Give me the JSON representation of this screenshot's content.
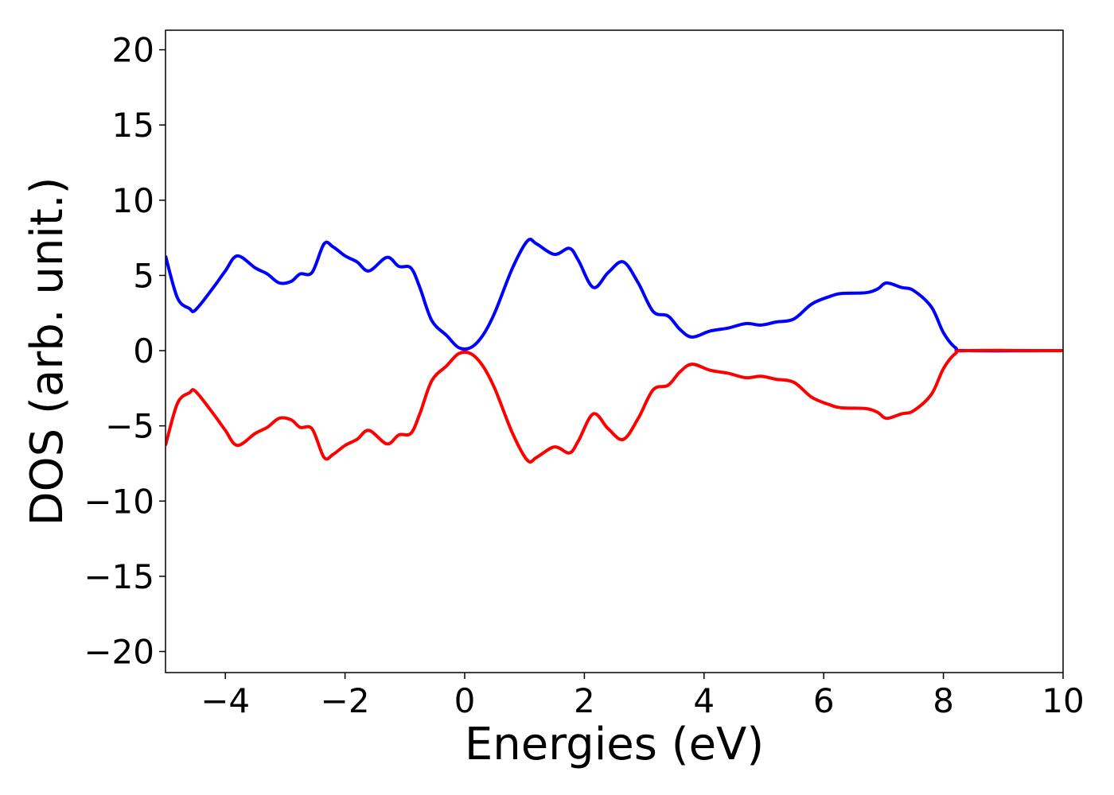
{
  "chart_data": {
    "type": "line",
    "x_label": "Energies (eV)",
    "y_label": "DOS (arb. unit.)",
    "x": [
      -5,
      -4.8,
      -4.6,
      -4.5,
      -4.2,
      -4.0,
      -3.8,
      -3.5,
      -3.3,
      -3.1,
      -2.9,
      -2.75,
      -2.55,
      -2.35,
      -2.2,
      -2.0,
      -1.8,
      -1.6,
      -1.3,
      -1.1,
      -0.9,
      -0.75,
      -0.55,
      -0.3,
      -0.1,
      0.1,
      0.3,
      0.5,
      0.8,
      1.05,
      1.2,
      1.5,
      1.75,
      1.9,
      2.15,
      2.4,
      2.65,
      2.9,
      3.15,
      3.4,
      3.6,
      3.8,
      4.1,
      4.4,
      4.7,
      4.95,
      5.2,
      5.5,
      5.8,
      6.1,
      6.3,
      6.7,
      6.9,
      7.05,
      7.3,
      7.5,
      7.8,
      8.0,
      8.2,
      8.4,
      10
    ],
    "series": [
      {
        "color": "#0000ff",
        "values": [
          6.3,
          3.5,
          2.8,
          2.7,
          4.2,
          5.3,
          6.3,
          5.5,
          5.1,
          4.5,
          4.6,
          5.1,
          5.2,
          7.1,
          6.9,
          6.3,
          5.9,
          5.3,
          6.2,
          5.6,
          5.5,
          4.2,
          2.0,
          1.0,
          0.2,
          0.2,
          1.0,
          2.5,
          5.5,
          7.3,
          7.1,
          6.4,
          6.8,
          6.0,
          4.2,
          5.2,
          5.9,
          4.5,
          2.6,
          2.3,
          1.4,
          0.9,
          1.3,
          1.5,
          1.8,
          1.7,
          1.9,
          2.1,
          3.1,
          3.6,
          3.8,
          3.85,
          4.1,
          4.5,
          4.2,
          4.0,
          2.9,
          1.2,
          0.2,
          0,
          0
        ]
      },
      {
        "color": "#ff0000",
        "values": [
          -6.3,
          -3.5,
          -2.8,
          -2.7,
          -4.2,
          -5.3,
          -6.3,
          -5.5,
          -5.1,
          -4.5,
          -4.6,
          -5.1,
          -5.2,
          -7.1,
          -6.9,
          -6.3,
          -5.9,
          -5.3,
          -6.2,
          -5.6,
          -5.5,
          -4.2,
          -2.0,
          -1.0,
          -0.2,
          -0.2,
          -1.0,
          -2.5,
          -5.5,
          -7.3,
          -7.1,
          -6.4,
          -6.8,
          -6.0,
          -4.2,
          -5.2,
          -5.9,
          -4.5,
          -2.6,
          -2.3,
          -1.4,
          -0.9,
          -1.3,
          -1.5,
          -1.8,
          -1.7,
          -1.9,
          -2.1,
          -3.1,
          -3.6,
          -3.8,
          -3.85,
          -4.1,
          -4.5,
          -4.2,
          -4.0,
          -2.9,
          -1.2,
          -0.2,
          0,
          0
        ]
      }
    ],
    "xlim": [
      -5,
      10
    ],
    "ylim": [
      -21.4,
      21.3
    ],
    "xticks": [
      {
        "value": -4,
        "label": "−4"
      },
      {
        "value": -2,
        "label": "−2"
      },
      0,
      2,
      4,
      6,
      8,
      10
    ],
    "yticks": [
      {
        "value": -20,
        "label": "−20"
      },
      {
        "value": -15,
        "label": "−15"
      },
      {
        "value": -10,
        "label": "−10"
      },
      {
        "value": -5,
        "label": "−5"
      },
      0,
      5,
      10,
      15,
      20
    ]
  }
}
